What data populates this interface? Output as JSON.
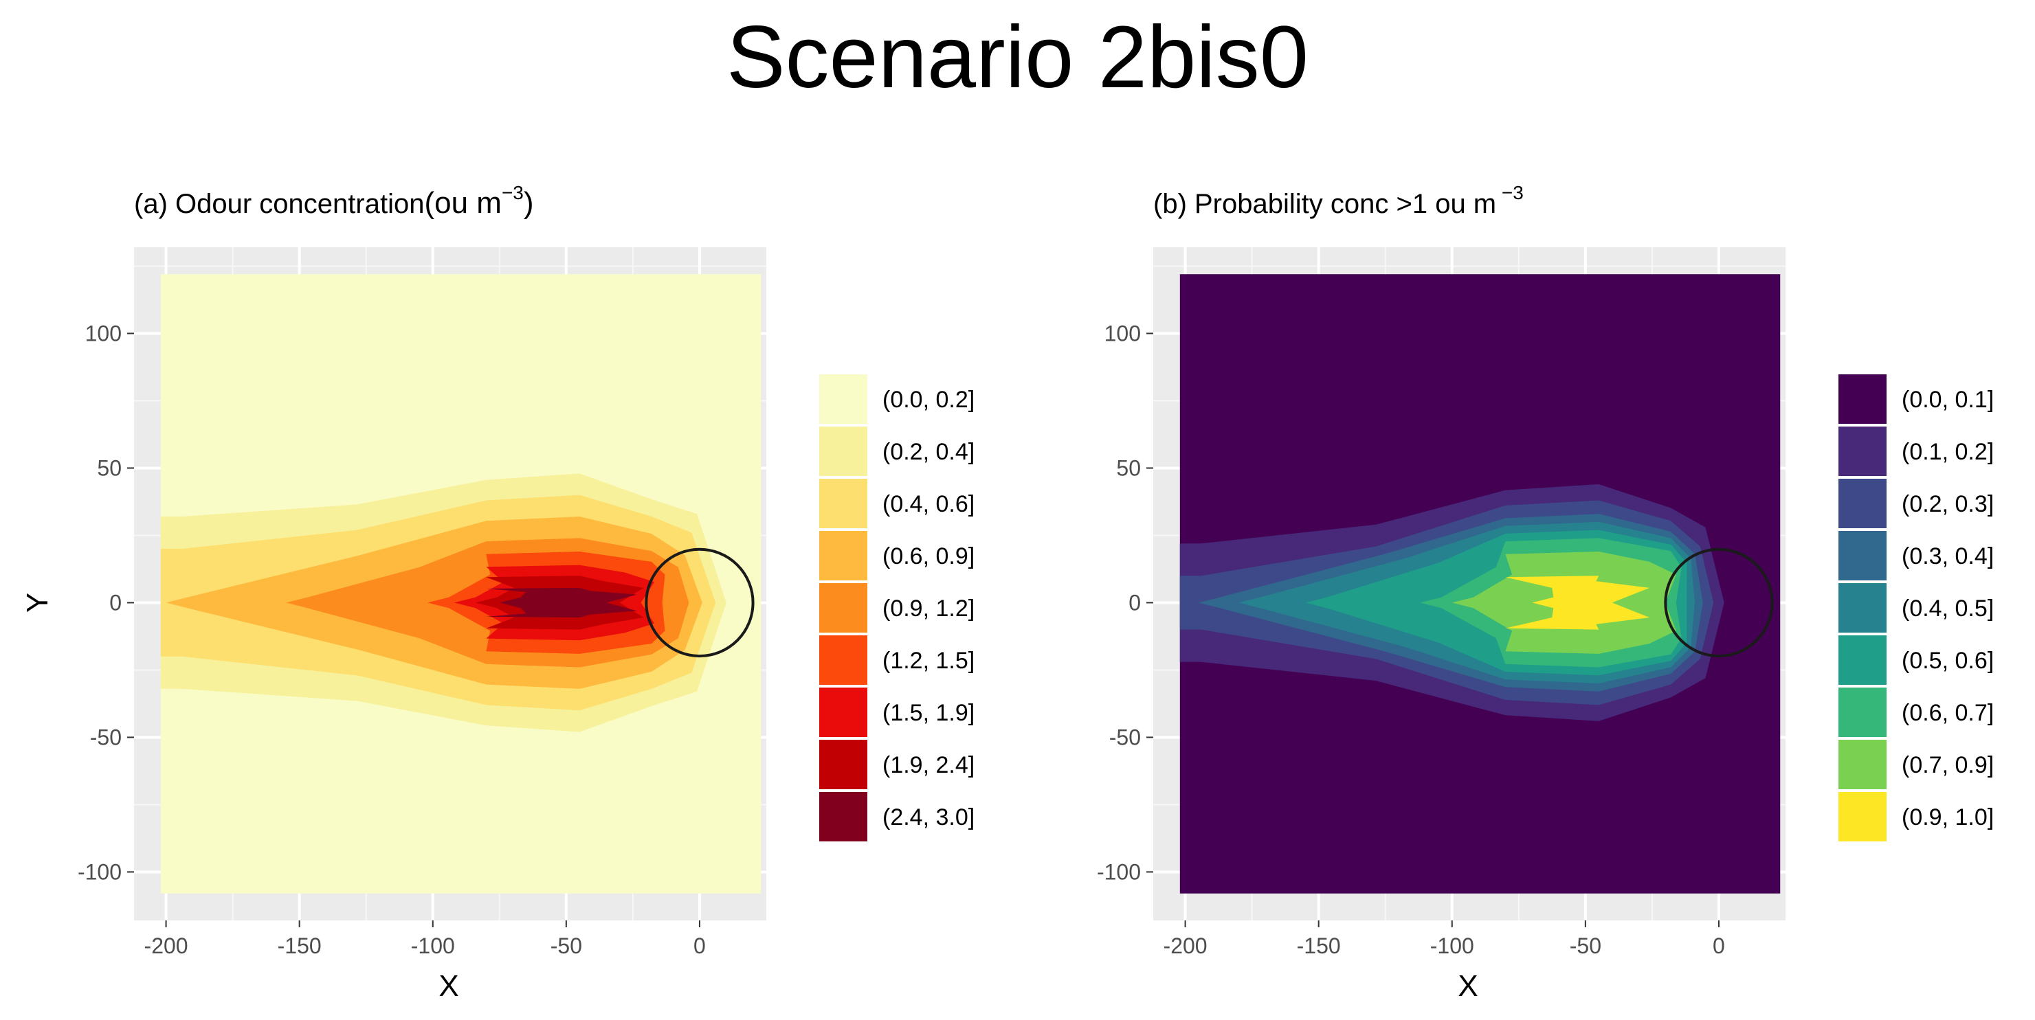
{
  "figure": {
    "title": "Scenario 2bis0"
  },
  "chart_data": [
    {
      "type": "heatmap",
      "subtitle": "(a) Odour concentration",
      "subtitle_unit_base": "(ou m",
      "subtitle_unit_exp": "−3",
      "subtitle_unit_close": ")",
      "xlabel": "X",
      "ylabel": "Y",
      "xlim": [
        -212,
        25
      ],
      "ylim": [
        -118,
        132
      ],
      "data_extent": {
        "x": [
          -202,
          23
        ],
        "y": [
          -108,
          122
        ]
      },
      "xticks": [
        -200,
        -150,
        -100,
        -50,
        0
      ],
      "yticks": [
        -100,
        -50,
        0,
        50,
        100
      ],
      "source_circle": {
        "x": 0,
        "y": 0,
        "radius": 20
      },
      "peak": {
        "x": -55,
        "y": 0
      },
      "grid": true,
      "legend_position": "right",
      "legend": [
        {
          "label": "(0.0, 0.2]",
          "color": "#FAFCC8"
        },
        {
          "label": "(0.2, 0.4]",
          "color": "#F8F19C"
        },
        {
          "label": "(0.4, 0.6]",
          "color": "#FCDF6E"
        },
        {
          "label": "(0.6, 0.9]",
          "color": "#FEBA3E"
        },
        {
          "label": "(0.9, 1.2]",
          "color": "#FC8C1E"
        },
        {
          "label": "(1.2, 1.5]",
          "color": "#FC4A0C"
        },
        {
          "label": "(1.5, 1.9]",
          "color": "#EA0B0B"
        },
        {
          "label": "(1.9, 2.4]",
          "color": "#C00003"
        },
        {
          "label": "(2.4, 3.0]",
          "color": "#80001E"
        }
      ],
      "contours": [
        {
          "level": 1,
          "semi_y_source": 33,
          "semi_y_peak": 48,
          "tail_x": -202,
          "tail_y": 32,
          "head_x": 10
        },
        {
          "level": 2,
          "semi_y_source": 26,
          "semi_y_peak": 40,
          "tail_x": -202,
          "tail_y": 20,
          "head_x": 6
        },
        {
          "level": 3,
          "semi_y_source": 16,
          "semi_y_peak": 32,
          "tail_x": -200,
          "tail_y": 0,
          "head_x": 1
        },
        {
          "level": 4,
          "semi_y_source": 7,
          "semi_y_peak": 24,
          "tail_x": -155,
          "tail_y": 0,
          "head_x": -4
        },
        {
          "level": 5,
          "semi_y_source": 0,
          "semi_y_peak": 19,
          "tail_x": -102,
          "tail_y": 0,
          "head_x": -14
        },
        {
          "level": 6,
          "semi_y_source": 0,
          "semi_y_peak": 14,
          "tail_x": -92,
          "tail_y": 0,
          "head_x": -22
        },
        {
          "level": 7,
          "semi_y_source": 0,
          "semi_y_peak": 10,
          "tail_x": -84,
          "tail_y": 0,
          "head_x": -30
        },
        {
          "level": 8,
          "semi_y_source": 0,
          "semi_y_peak": 5.5,
          "tail_x": -75,
          "tail_y": 0,
          "head_x": -35
        }
      ]
    },
    {
      "type": "heatmap",
      "subtitle": "(b) Probability conc >1 ou m",
      "subtitle_unit_exp": "−3",
      "xlabel": "X",
      "ylabel": "",
      "xlim": [
        -212,
        25
      ],
      "ylim": [
        -118,
        132
      ],
      "data_extent": {
        "x": [
          -202,
          23
        ],
        "y": [
          -108,
          122
        ]
      },
      "xticks": [
        -200,
        -150,
        -100,
        -50,
        0
      ],
      "yticks": [
        -100,
        -50,
        0,
        50,
        100
      ],
      "source_circle": {
        "x": 0,
        "y": 0,
        "radius": 20
      },
      "peak": {
        "x": -55,
        "y": 0
      },
      "grid": true,
      "legend_position": "right",
      "legend": [
        {
          "label": "(0.0, 0.1]",
          "color": "#440154"
        },
        {
          "label": "(0.1, 0.2]",
          "color": "#482878"
        },
        {
          "label": "(0.2, 0.3]",
          "color": "#3E4989"
        },
        {
          "label": "(0.3, 0.4]",
          "color": "#31688E"
        },
        {
          "label": "(0.4, 0.5]",
          "color": "#26828E"
        },
        {
          "label": "(0.5, 0.6]",
          "color": "#1F9E89"
        },
        {
          "label": "(0.6, 0.7]",
          "color": "#35B779"
        },
        {
          "label": "(0.7, 0.9]",
          "color": "#7AD151"
        },
        {
          "label": "(0.9, 1.0]",
          "color": "#FDE725"
        }
      ],
      "contours": [
        {
          "level": 1,
          "semi_y_source": 28,
          "semi_y_peak": 44,
          "tail_x": -202,
          "tail_y": 22,
          "head_x": 2
        },
        {
          "level": 2,
          "semi_y_source": 20,
          "semi_y_peak": 38,
          "tail_x": -202,
          "tail_y": 10,
          "head_x": -2
        },
        {
          "level": 3,
          "semi_y_source": 14,
          "semi_y_peak": 33,
          "tail_x": -195,
          "tail_y": 0,
          "head_x": -6
        },
        {
          "level": 4,
          "semi_y_source": 10,
          "semi_y_peak": 30,
          "tail_x": -180,
          "tail_y": 0,
          "head_x": -9
        },
        {
          "level": 5,
          "semi_y_source": 3,
          "semi_y_peak": 27,
          "tail_x": -155,
          "tail_y": 0,
          "head_x": -12
        },
        {
          "level": 6,
          "semi_y_source": 0,
          "semi_y_peak": 24,
          "tail_x": -112,
          "tail_y": 0,
          "head_x": -16
        },
        {
          "level": 7,
          "semi_y_source": 0,
          "semi_y_peak": 19,
          "tail_x": -100,
          "tail_y": 0,
          "head_x": -20
        },
        {
          "level": 8,
          "semi_y_source": 0,
          "semi_y_peak": 10,
          "tail_x": -70,
          "tail_y": 0,
          "head_x": -40
        }
      ]
    }
  ]
}
